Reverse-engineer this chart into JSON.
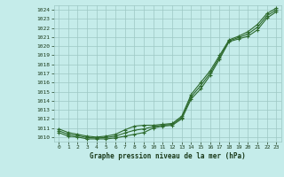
{
  "xlabel": "Graphe pression niveau de la mer (hPa)",
  "x": [
    0,
    1,
    2,
    3,
    4,
    5,
    6,
    7,
    8,
    9,
    10,
    11,
    12,
    13,
    14,
    15,
    16,
    17,
    18,
    19,
    20,
    21,
    22,
    23
  ],
  "line1": [
    1010.5,
    1010.1,
    1010.0,
    1009.8,
    1009.8,
    1009.8,
    1009.9,
    1010.1,
    1010.3,
    1010.5,
    1011.0,
    1011.2,
    1011.3,
    1012.0,
    1014.2,
    1015.3,
    1016.8,
    1018.6,
    1020.5,
    1020.8,
    1021.1,
    1021.8,
    1023.1,
    1023.8
  ],
  "line2": [
    1010.9,
    1010.5,
    1010.3,
    1010.1,
    1010.0,
    1010.1,
    1010.3,
    1010.8,
    1011.2,
    1011.3,
    1011.3,
    1011.4,
    1011.5,
    1012.3,
    1014.7,
    1016.0,
    1017.3,
    1019.0,
    1020.7,
    1021.1,
    1021.6,
    1022.4,
    1023.6,
    1024.2
  ],
  "line3": [
    1010.7,
    1010.3,
    1010.15,
    1009.95,
    1009.9,
    1009.95,
    1010.1,
    1010.45,
    1010.75,
    1010.9,
    1011.15,
    1011.3,
    1011.4,
    1012.15,
    1014.45,
    1015.65,
    1017.05,
    1018.8,
    1020.6,
    1020.95,
    1021.35,
    1022.1,
    1023.35,
    1024.0
  ],
  "line_color": "#2d6a2d",
  "bg_color": "#c5ecea",
  "grid_color": "#9dc8c4",
  "text_color": "#1a3a1a",
  "ylim": [
    1009.5,
    1024.5
  ],
  "xlim": [
    -0.5,
    23.5
  ],
  "yticks": [
    1010,
    1011,
    1012,
    1013,
    1014,
    1015,
    1016,
    1017,
    1018,
    1019,
    1020,
    1021,
    1022,
    1023,
    1024
  ],
  "xticks": [
    0,
    1,
    2,
    3,
    4,
    5,
    6,
    7,
    8,
    9,
    10,
    11,
    12,
    13,
    14,
    15,
    16,
    17,
    18,
    19,
    20,
    21,
    22,
    23
  ],
  "marker": "+",
  "markersize": 3,
  "linewidth": 0.8,
  "tick_labelsize": 4.5,
  "xlabel_fontsize": 5.5
}
